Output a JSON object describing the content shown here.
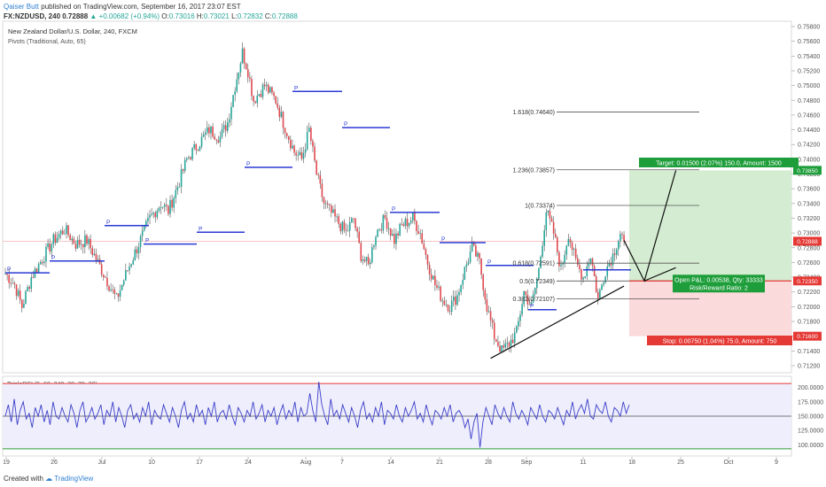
{
  "header": {
    "author": "Qaiser Butt",
    "published": "published on TradingView.com, September 16, 2017 23:07 EST",
    "symbol": "FX:NZDUSD, 240",
    "last": "0.72888",
    "change_arrow": "▲",
    "change": "+0.00682 (+0.94%)",
    "open_label": "O:",
    "open": "0.73016",
    "high_label": "H:",
    "high": "0.73021",
    "low_label": "L:",
    "low": "0.72832",
    "close_label": "C:",
    "close": "0.72888"
  },
  "legend": {
    "title": "New Zealand Dollar/U.S. Dollar, 240, FXCM",
    "indicator": "Pivots (Traditional, Auto, 65)"
  },
  "footer": {
    "created_with": "Created with",
    "brand": "TradingView"
  },
  "colors": {
    "up": "#26a69a",
    "down": "#e0494f",
    "pivot": "#2a3ad4",
    "target_fill": "#d4edd2",
    "stop_fill": "#fadada",
    "target_label": "#1e9e3a",
    "stop_label": "#e53935",
    "rsi_line": "#3b3ec8",
    "rsi_band": "#eeeefc"
  },
  "chart_data": [
    {
      "type": "candlestick",
      "title": "New Zealand Dollar/U.S. Dollar, 240, FXCM",
      "symbol": "FX:NZDUSD",
      "y_range": [
        0.712,
        0.759
      ],
      "y_ticks": [
        "0.75800",
        "0.75600",
        "0.75400",
        "0.75200",
        "0.75000",
        "0.74800",
        "0.74600",
        "0.74400",
        "0.74200",
        "0.74000",
        "0.73800",
        "0.73600",
        "0.73400",
        "0.73200",
        "0.73000",
        "0.72800",
        "0.72600",
        "0.72400",
        "0.72200",
        "0.72000",
        "0.71800",
        "0.71600",
        "0.71400",
        "0.71200"
      ],
      "x_ticks": [
        "19",
        "26",
        "Jul",
        "10",
        "17",
        "24",
        "Aug",
        "7",
        "14",
        "21",
        "28",
        "Sep",
        "11",
        "18",
        "25",
        "Oct",
        "9"
      ],
      "anchor_points": [
        [
          0,
          0.7245
        ],
        [
          5,
          0.723
        ],
        [
          9,
          0.72
        ],
        [
          14,
          0.724
        ],
        [
          20,
          0.7265
        ],
        [
          26,
          0.729
        ],
        [
          32,
          0.7305
        ],
        [
          38,
          0.7285
        ],
        [
          44,
          0.729
        ],
        [
          50,
          0.726
        ],
        [
          56,
          0.723
        ],
        [
          60,
          0.721
        ],
        [
          66,
          0.725
        ],
        [
          72,
          0.7285
        ],
        [
          78,
          0.732
        ],
        [
          84,
          0.734
        ],
        [
          88,
          0.733
        ],
        [
          94,
          0.737
        ],
        [
          98,
          0.74
        ],
        [
          104,
          0.742
        ],
        [
          110,
          0.744
        ],
        [
          116,
          0.743
        ],
        [
          120,
          0.745
        ],
        [
          124,
          0.75
        ],
        [
          128,
          0.7545
        ],
        [
          131,
          0.752
        ],
        [
          134,
          0.748
        ],
        [
          140,
          0.75
        ],
        [
          146,
          0.748
        ],
        [
          150,
          0.745
        ],
        [
          156,
          0.741
        ],
        [
          160,
          0.74
        ],
        [
          164,
          0.744
        ],
        [
          168,
          0.738
        ],
        [
          172,
          0.734
        ],
        [
          178,
          0.732
        ],
        [
          184,
          0.73
        ],
        [
          188,
          0.732
        ],
        [
          192,
          0.727
        ],
        [
          196,
          0.7255
        ],
        [
          200,
          0.73
        ],
        [
          205,
          0.732
        ],
        [
          210,
          0.729
        ],
        [
          214,
          0.731
        ],
        [
          220,
          0.732
        ],
        [
          224,
          0.73
        ],
        [
          228,
          0.726
        ],
        [
          232,
          0.723
        ],
        [
          236,
          0.721
        ],
        [
          240,
          0.72
        ],
        [
          244,
          0.7215
        ],
        [
          248,
          0.725
        ],
        [
          252,
          0.728
        ],
        [
          256,
          0.726
        ],
        [
          260,
          0.72
        ],
        [
          264,
          0.716
        ],
        [
          268,
          0.714
        ],
        [
          272,
          0.715
        ],
        [
          276,
          0.7165
        ],
        [
          280,
          0.722
        ],
        [
          284,
          0.72
        ],
        [
          288,
          0.725
        ],
        [
          292,
          0.733
        ],
        [
          296,
          0.73
        ],
        [
          300,
          0.725
        ],
        [
          304,
          0.73
        ],
        [
          308,
          0.726
        ],
        [
          312,
          0.724
        ],
        [
          316,
          0.727
        ],
        [
          320,
          0.721
        ],
        [
          324,
          0.725
        ],
        [
          328,
          0.727
        ],
        [
          332,
          0.73
        ],
        [
          334,
          0.7289
        ]
      ],
      "last_price": "0.72888",
      "pivot_levels_visible": "short horizontal segments labeled P",
      "pivot_labels": [
        "P",
        "P",
        "P",
        "P",
        "P",
        "P",
        "P",
        "P",
        "P",
        "P",
        "P",
        "P"
      ],
      "fib_levels": [
        {
          "label": "1.618(0.74640)",
          "value": 0.7464
        },
        {
          "label": "1.236(0.73857)",
          "value": 0.73857
        },
        {
          "label": "1(0.73374)",
          "value": 0.73374
        },
        {
          "label": "0.618(0.72591)",
          "value": 0.72591
        },
        {
          "label": "0.5(0.72349)",
          "value": 0.72349
        },
        {
          "label": "0.382(0.72107)",
          "value": 0.72107
        }
      ],
      "long_position": {
        "entry": 0.7235,
        "target": 0.7385,
        "stop": 0.716,
        "entry_label": "0.72350",
        "target_price_label": "0.73850",
        "stop_price_label": "0.71600",
        "target_text": "Target: 0.01500 (2.07%) 150.0, Amount: 1500",
        "stop_text": "Stop: 0.00750 (1.04%) 75.0, Amount: 750",
        "open_text": "Open P&L: 0.00538, Qty: 33333",
        "rr_text": "Risk/Reward Ratio: 2"
      },
      "trendline": {
        "from": [
          262,
          0.713
        ],
        "to": [
          334,
          0.7228
        ]
      },
      "projection_path": [
        [
          334,
          0.729
        ],
        [
          345,
          0.7235
        ],
        [
          362,
          0.7385
        ]
      ],
      "ascending_line": {
        "from": [
          345,
          0.7235
        ],
        "to": [
          362,
          0.7253
        ]
      }
    },
    {
      "type": "line",
      "title": "TripleRSI (5, 60, 240, 28, 70, 30)",
      "y_range": [
        85,
        215
      ],
      "y_ticks": [
        "200.0000",
        "175.0000",
        "150.0000",
        "125.0000",
        "100.0000"
      ],
      "upper_band": 207,
      "lower_band": 93,
      "mid_line": 150,
      "series": [
        {
          "values": [
            150,
            170,
            140,
            180,
            135,
            160,
            175,
            145,
            155,
            130,
            165,
            150,
            170,
            140,
            160,
            135,
            175,
            150,
            145,
            165,
            150,
            140,
            170,
            155,
            130,
            160,
            175,
            140,
            150,
            165,
            145,
            155,
            170,
            135,
            160,
            150,
            175,
            140,
            165,
            150,
            130,
            160,
            170,
            145,
            155,
            140,
            165,
            150,
            175,
            135,
            160,
            150,
            145,
            170,
            155,
            140,
            165,
            150,
            130,
            160,
            175,
            145,
            155,
            140,
            170,
            150,
            160,
            135,
            165,
            150,
            175,
            140,
            155,
            160,
            145,
            170,
            150,
            135,
            165,
            155,
            140,
            160,
            150,
            175,
            145,
            155,
            170,
            140,
            160,
            150,
            165,
            135,
            155,
            170,
            145,
            160,
            150,
            175,
            140,
            165,
            150,
            155,
            190,
            160,
            140,
            210,
            170,
            150,
            135,
            180,
            150,
            160,
            145,
            170,
            155,
            140,
            165,
            150,
            130,
            160,
            175,
            145,
            155,
            140,
            165,
            150,
            175,
            135,
            160,
            155,
            145,
            170,
            150,
            140,
            165,
            150,
            160,
            175,
            145,
            155,
            140,
            170,
            150,
            135,
            160,
            155,
            145,
            165,
            150,
            170,
            140,
            155,
            160,
            150,
            130,
            145,
            110,
            140,
            155,
            95,
            140,
            165,
            150,
            135,
            170,
            155,
            145,
            165,
            150,
            140,
            175,
            155,
            145,
            160,
            150,
            135,
            165,
            155,
            145,
            170,
            150,
            140,
            160,
            155,
            145,
            165,
            150,
            135,
            160,
            150,
            175,
            145,
            160,
            170,
            155,
            180,
            150,
            145,
            170,
            160,
            155,
            175,
            150,
            140,
            165,
            160,
            150,
            175,
            155,
            170
          ]
        }
      ]
    }
  ]
}
